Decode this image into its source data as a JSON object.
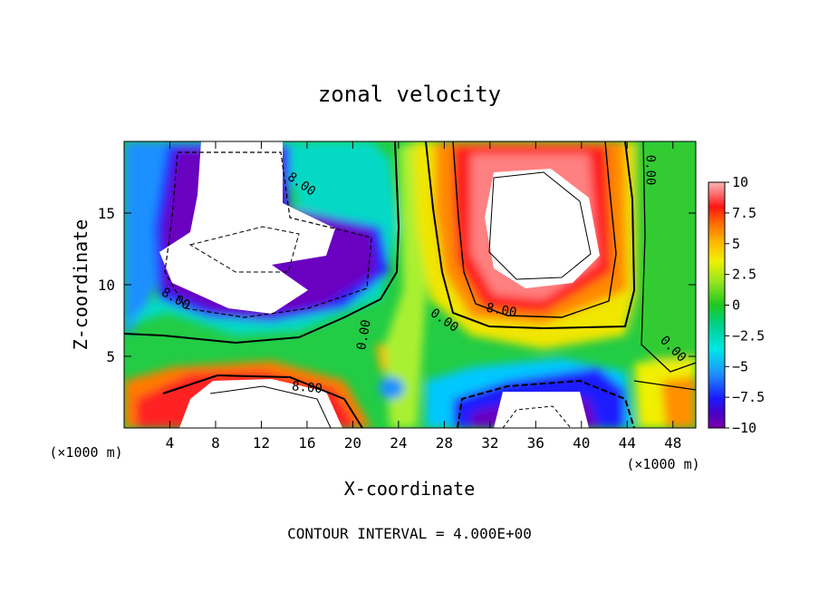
{
  "chart_data": {
    "type": "heatmap",
    "title": "zonal velocity",
    "xlabel": "X-coordinate",
    "ylabel": "Z-coordinate",
    "x_units": "(×1000 m)",
    "z_units": "(×1000 m)",
    "footer": "CONTOUR INTERVAL = 4.000E+00",
    "xlim": [
      0,
      50
    ],
    "ylim": [
      0,
      20
    ],
    "x_ticks": [
      4,
      8,
      12,
      16,
      20,
      24,
      28,
      32,
      36,
      40,
      44,
      48
    ],
    "y_ticks": [
      5,
      10,
      15
    ],
    "colorbar": {
      "range": [
        -10,
        10
      ],
      "ticks": [
        10,
        7.5,
        5,
        2.5,
        0,
        -2.5,
        -5,
        -7.5,
        -10
      ],
      "tick_labels": [
        "10",
        "7.5",
        "5",
        "2.5",
        "0",
        "−2.5",
        "−5",
        "−7.5",
        "−10"
      ]
    },
    "contour_labels": [
      {
        "text": "8.00",
        "x": 15.5,
        "z": 17.0
      },
      {
        "text": "8.00",
        "x": 4.5,
        "z": 9.0
      },
      {
        "text": "0.00",
        "x": 21.0,
        "z": 6.5
      },
      {
        "text": "0.00",
        "x": 28.0,
        "z": 7.5
      },
      {
        "text": "8.00",
        "x": 33.0,
        "z": 8.2
      },
      {
        "text": "0.00",
        "x": 46.0,
        "z": 18.0
      },
      {
        "text": "0.00",
        "x": 48.0,
        "z": 5.5
      },
      {
        "text": "8.00",
        "x": 16.0,
        "z": 2.8
      }
    ]
  }
}
